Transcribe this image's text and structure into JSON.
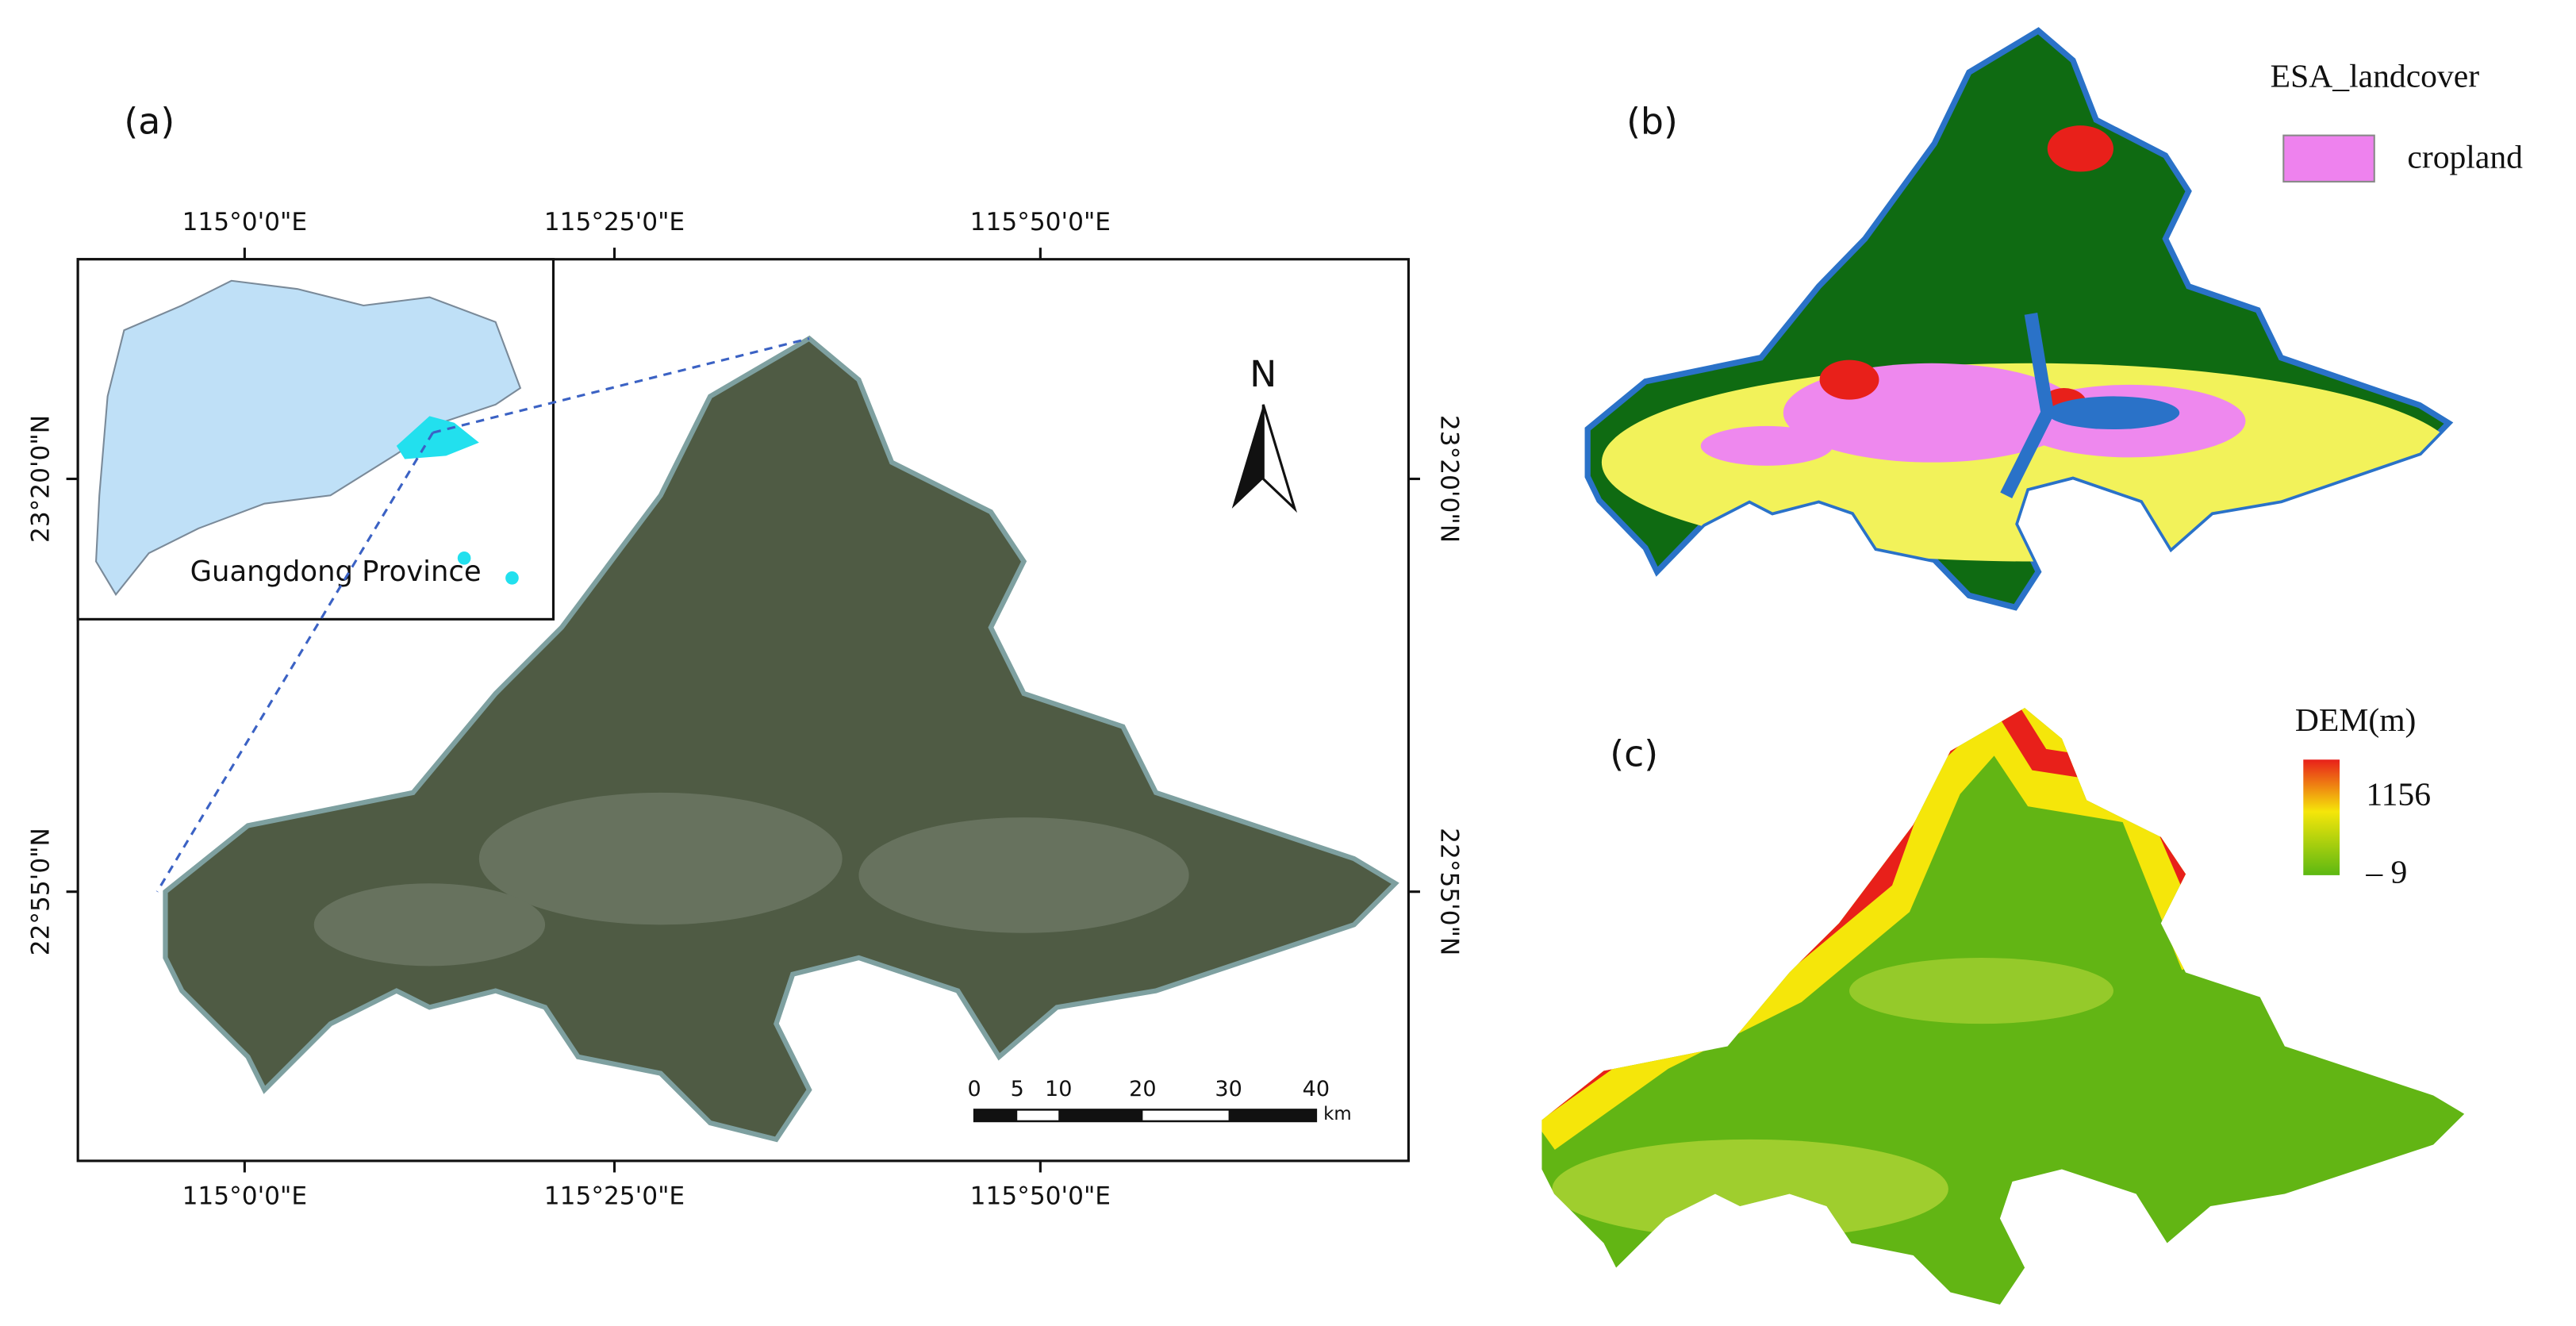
{
  "panel_a": {
    "label": "(a)",
    "top_labels": [
      "115°0'0\"E",
      "115°25'0\"E",
      "115°50'0\"E"
    ],
    "bottom_labels": [
      "115°0'0\"E",
      "115°25'0\"E",
      "115°50'0\"E"
    ],
    "left_labels": [
      "23°20'0\"N",
      "22°55'0\"N"
    ],
    "right_labels": [
      "23°20'0\"N",
      "22°55'0\"N"
    ],
    "inset_label": "Guangdong Province",
    "north": "N",
    "scale_bar": {
      "ticks": [
        "0",
        "5",
        "10",
        "20",
        "30",
        "40"
      ],
      "unit": "km"
    }
  },
  "panel_b": {
    "label": "(b)",
    "legend_title": "ESA_landcover",
    "legend_items": [
      "cropland"
    ]
  },
  "panel_c": {
    "label": "(c)",
    "legend_title": "DEM(m)",
    "legend_max": "1156",
    "legend_min": "– 9"
  }
}
